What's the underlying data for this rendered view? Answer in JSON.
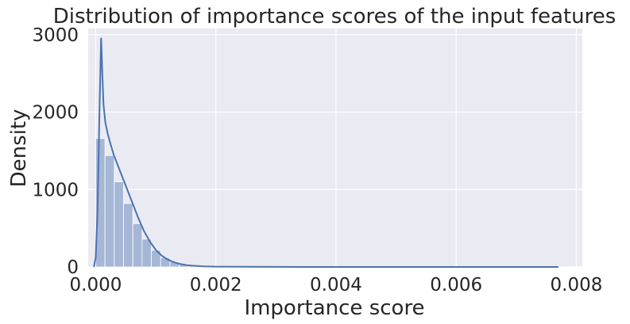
{
  "chart_data": {
    "type": "histogram",
    "title": "Distribution of importance scores of the input features",
    "xlabel": "Importance score",
    "ylabel": "Density",
    "xlim": [
      -0.000125,
      0.0081
    ],
    "ylim": [
      0,
      3080
    ],
    "x_ticks": [
      0.0,
      0.002,
      0.004,
      0.006,
      0.008
    ],
    "x_tick_labels": [
      "0.000",
      "0.002",
      "0.004",
      "0.006",
      "0.008"
    ],
    "y_ticks": [
      0,
      1000,
      2000,
      3000
    ],
    "y_tick_labels": [
      "0",
      "1000",
      "2000",
      "3000"
    ],
    "grid": true,
    "colors": {
      "background": "#eaeaf2",
      "grid": "#ffffff",
      "bar": "#a6b7d6",
      "line": "#4c72b0"
    },
    "bins": {
      "start": 0.0,
      "width": 0.0001545,
      "values": [
        1660,
        1440,
        1100,
        820,
        560,
        360,
        215,
        120,
        65,
        33,
        16,
        8,
        4,
        2,
        1,
        0,
        0,
        0,
        0,
        0,
        0,
        0,
        0,
        0,
        0,
        0,
        0,
        0,
        0,
        0,
        0,
        0,
        0,
        0,
        0,
        0,
        0,
        0,
        0,
        0,
        0,
        0,
        0,
        0,
        0,
        0,
        0,
        0,
        0,
        1
      ]
    },
    "kde": {
      "x": [
        -3e-05,
        0.0,
        3e-05,
        6e-05,
        9e-05,
        0.00011,
        0.00013,
        0.00016,
        0.0002,
        0.00025,
        0.0003,
        0.0004,
        0.0005,
        0.0006,
        0.0007,
        0.0008,
        0.0009,
        0.001,
        0.0011,
        0.0012,
        0.0013,
        0.0014,
        0.0015,
        0.0016,
        0.0018,
        0.002,
        0.0025,
        0.003,
        0.004,
        0.005,
        0.006,
        0.007,
        0.0077
      ],
      "y": [
        0,
        120,
        700,
        1900,
        2960,
        2500,
        2100,
        1870,
        1720,
        1580,
        1450,
        1250,
        1050,
        850,
        650,
        470,
        330,
        220,
        145,
        95,
        62,
        40,
        26,
        17,
        8,
        4,
        2,
        1,
        0,
        0,
        0,
        0,
        0
      ]
    }
  }
}
